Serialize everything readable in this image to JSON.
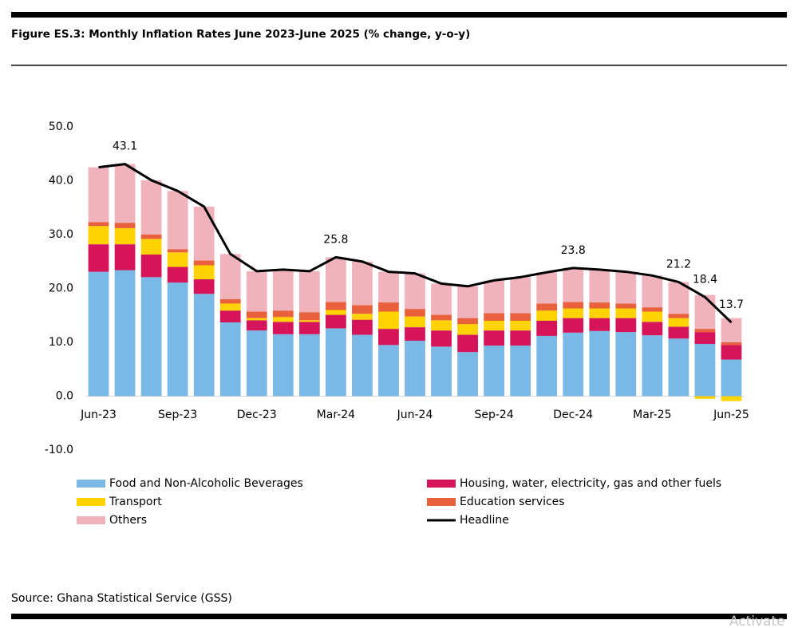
{
  "chart_data": {
    "type": "bar",
    "stacked": true,
    "title": "Figure ES.3: Monthly Inflation Rates June 2023-June 2025 (% change, y-o-y)",
    "source": "Source: Ghana Statistical Service (GSS)",
    "watermark": "Activate",
    "categories": [
      "Jun-23",
      null,
      null,
      "Sep-23",
      null,
      null,
      "Dec-23",
      null,
      null,
      "Mar-24",
      null,
      null,
      "Jun-24",
      null,
      null,
      "Sep-24",
      null,
      null,
      "Dec-24",
      null,
      null,
      "Mar-25",
      null,
      null,
      "Jun-25"
    ],
    "ylim": [
      -10,
      50
    ],
    "yticks": [
      {
        "value": -10,
        "label": "-10.0"
      },
      {
        "value": 0,
        "label": "0.0"
      },
      {
        "value": 10,
        "label": "10.0"
      },
      {
        "value": 20,
        "label": "20.0"
      },
      {
        "value": 30,
        "label": "30.0"
      },
      {
        "value": 40,
        "label": "40.0"
      },
      {
        "value": 50,
        "label": "50.0"
      }
    ],
    "series": [
      {
        "name": "Food and Non-Alcoholic Beverages",
        "color": "#7ab8e6",
        "values": [
          23.1,
          23.4,
          22.1,
          21.1,
          19.0,
          13.7,
          12.2,
          11.5,
          11.5,
          12.6,
          11.4,
          9.5,
          10.3,
          9.2,
          8.2,
          9.4,
          9.4,
          11.2,
          11.8,
          12.1,
          11.9,
          11.3,
          10.7,
          9.7,
          6.8
        ]
      },
      {
        "name": "Housing, water, electricity, gas and other fuels",
        "color": "#d6145a",
        "values": [
          5.1,
          4.8,
          4.2,
          2.9,
          2.7,
          2.2,
          1.9,
          2.3,
          2.3,
          2.5,
          2.8,
          3.0,
          2.5,
          3.0,
          3.2,
          2.8,
          2.8,
          2.8,
          2.7,
          2.4,
          2.6,
          2.5,
          2.2,
          2.2,
          2.7
        ]
      },
      {
        "name": "Transport",
        "color": "#ffd200",
        "values": [
          3.4,
          3.0,
          2.9,
          2.7,
          2.6,
          1.3,
          0.4,
          0.9,
          0.3,
          0.9,
          1.1,
          3.2,
          2.0,
          1.9,
          2.0,
          1.8,
          1.8,
          1.9,
          1.8,
          1.8,
          1.8,
          1.9,
          1.6,
          -0.5,
          -0.9
        ]
      },
      {
        "name": "Education services",
        "color": "#e8603c",
        "values": [
          0.7,
          1.0,
          0.8,
          0.6,
          0.9,
          0.8,
          1.2,
          1.2,
          1.5,
          1.5,
          1.6,
          1.7,
          1.4,
          1.0,
          1.1,
          1.4,
          1.4,
          1.3,
          1.2,
          1.1,
          0.9,
          0.8,
          0.8,
          0.6,
          0.5
        ]
      },
      {
        "name": "Others",
        "color": "#f0b3bc",
        "values": [
          10.2,
          10.9,
          10.1,
          10.8,
          10.0,
          8.4,
          7.5,
          7.6,
          7.6,
          8.3,
          8.1,
          5.7,
          6.6,
          5.8,
          5.9,
          6.1,
          6.7,
          5.8,
          6.3,
          6.1,
          5.9,
          5.9,
          5.9,
          6.3,
          4.5
        ]
      },
      {
        "name": "Headline",
        "color": "#000000",
        "type": "line",
        "values": [
          42.5,
          43.1,
          40.1,
          38.1,
          35.2,
          26.4,
          23.2,
          23.5,
          23.2,
          25.8,
          25.0,
          23.1,
          22.8,
          20.9,
          20.4,
          21.5,
          22.1,
          23.0,
          23.8,
          23.5,
          23.1,
          22.4,
          21.2,
          18.4,
          13.7
        ],
        "value_labels": [
          null,
          "43.1",
          null,
          null,
          null,
          null,
          null,
          null,
          null,
          "25.8",
          null,
          null,
          null,
          null,
          null,
          null,
          null,
          null,
          "23.8",
          null,
          null,
          null,
          "21.2",
          "18.4",
          "13.7"
        ]
      }
    ]
  }
}
